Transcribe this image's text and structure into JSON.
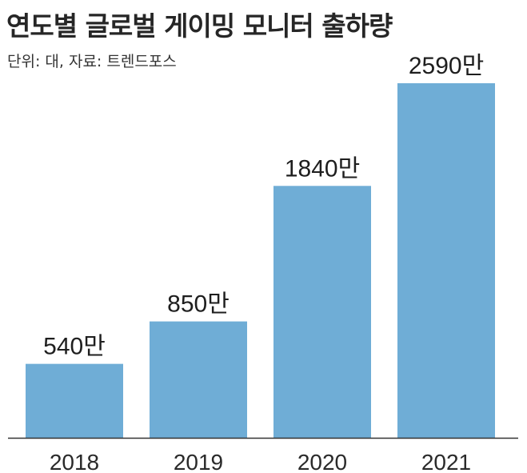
{
  "chart_data": {
    "type": "bar",
    "title": "연도별 글로벌 게이밍 모니터 출하량",
    "subtitle": "단위: 대, 자료: 트렌드포스",
    "categories": [
      "2018",
      "2019",
      "2020",
      "2021"
    ],
    "values": [
      5400000,
      8500000,
      18400000,
      25900000
    ],
    "value_labels": [
      "540만",
      "850만",
      "1840만",
      "2590만"
    ],
    "bar_color": "#6fadd6",
    "axis_color": "#333333",
    "ylim": [
      0,
      25900000
    ],
    "grid": false,
    "legend": "none"
  }
}
